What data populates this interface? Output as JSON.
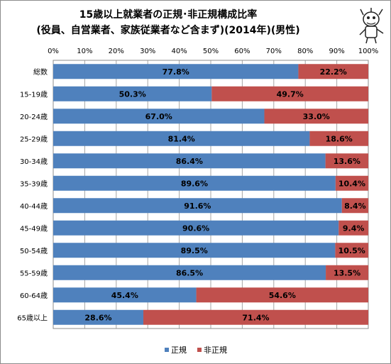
{
  "chart_data": {
    "type": "bar",
    "orientation": "horizontal",
    "stacked": "percent",
    "title": "15歳以上就業者の正規･非正規構成比率",
    "subtitle": "(役員、自営業者、家族従業者など含まず)(2014年)(男性)",
    "categories": [
      "総数",
      "15-19歳",
      "20-24歳",
      "25-29歳",
      "30-34歳",
      "35-39歳",
      "40-44歳",
      "45-49歳",
      "50-54歳",
      "55-59歳",
      "60-64歳",
      "65歳以上"
    ],
    "series": [
      {
        "name": "正規",
        "color": "#4f81bd",
        "values": [
          77.8,
          50.3,
          67.0,
          81.4,
          86.4,
          89.6,
          91.6,
          90.6,
          89.5,
          86.5,
          45.4,
          28.6
        ],
        "labels": [
          "77.8%",
          "50.3%",
          "67.0%",
          "81.4%",
          "86.4%",
          "89.6%",
          "91.6%",
          "90.6%",
          "89.5%",
          "86.5%",
          "45.4%",
          "28.6%"
        ]
      },
      {
        "name": "非正規",
        "color": "#c0504d",
        "values": [
          22.2,
          49.7,
          33.0,
          18.6,
          13.6,
          10.4,
          8.4,
          9.4,
          10.5,
          13.5,
          54.6,
          71.4
        ],
        "labels": [
          "22.2%",
          "49.7%",
          "33.0%",
          "18.6%",
          "13.6%",
          "10.4%",
          "8.4%",
          "9.4%",
          "10.5%",
          "13.5%",
          "54.6%",
          "71.4%"
        ]
      }
    ],
    "xticks": [
      "0%",
      "10%",
      "20%",
      "30%",
      "40%",
      "50%",
      "60%",
      "70%",
      "80%",
      "90%",
      "100%"
    ],
    "xlim": [
      0,
      100
    ],
    "grid": true,
    "legend": "bottom"
  },
  "decor": {
    "mascot-icon": "cartoon character logo in the top-right corner"
  }
}
